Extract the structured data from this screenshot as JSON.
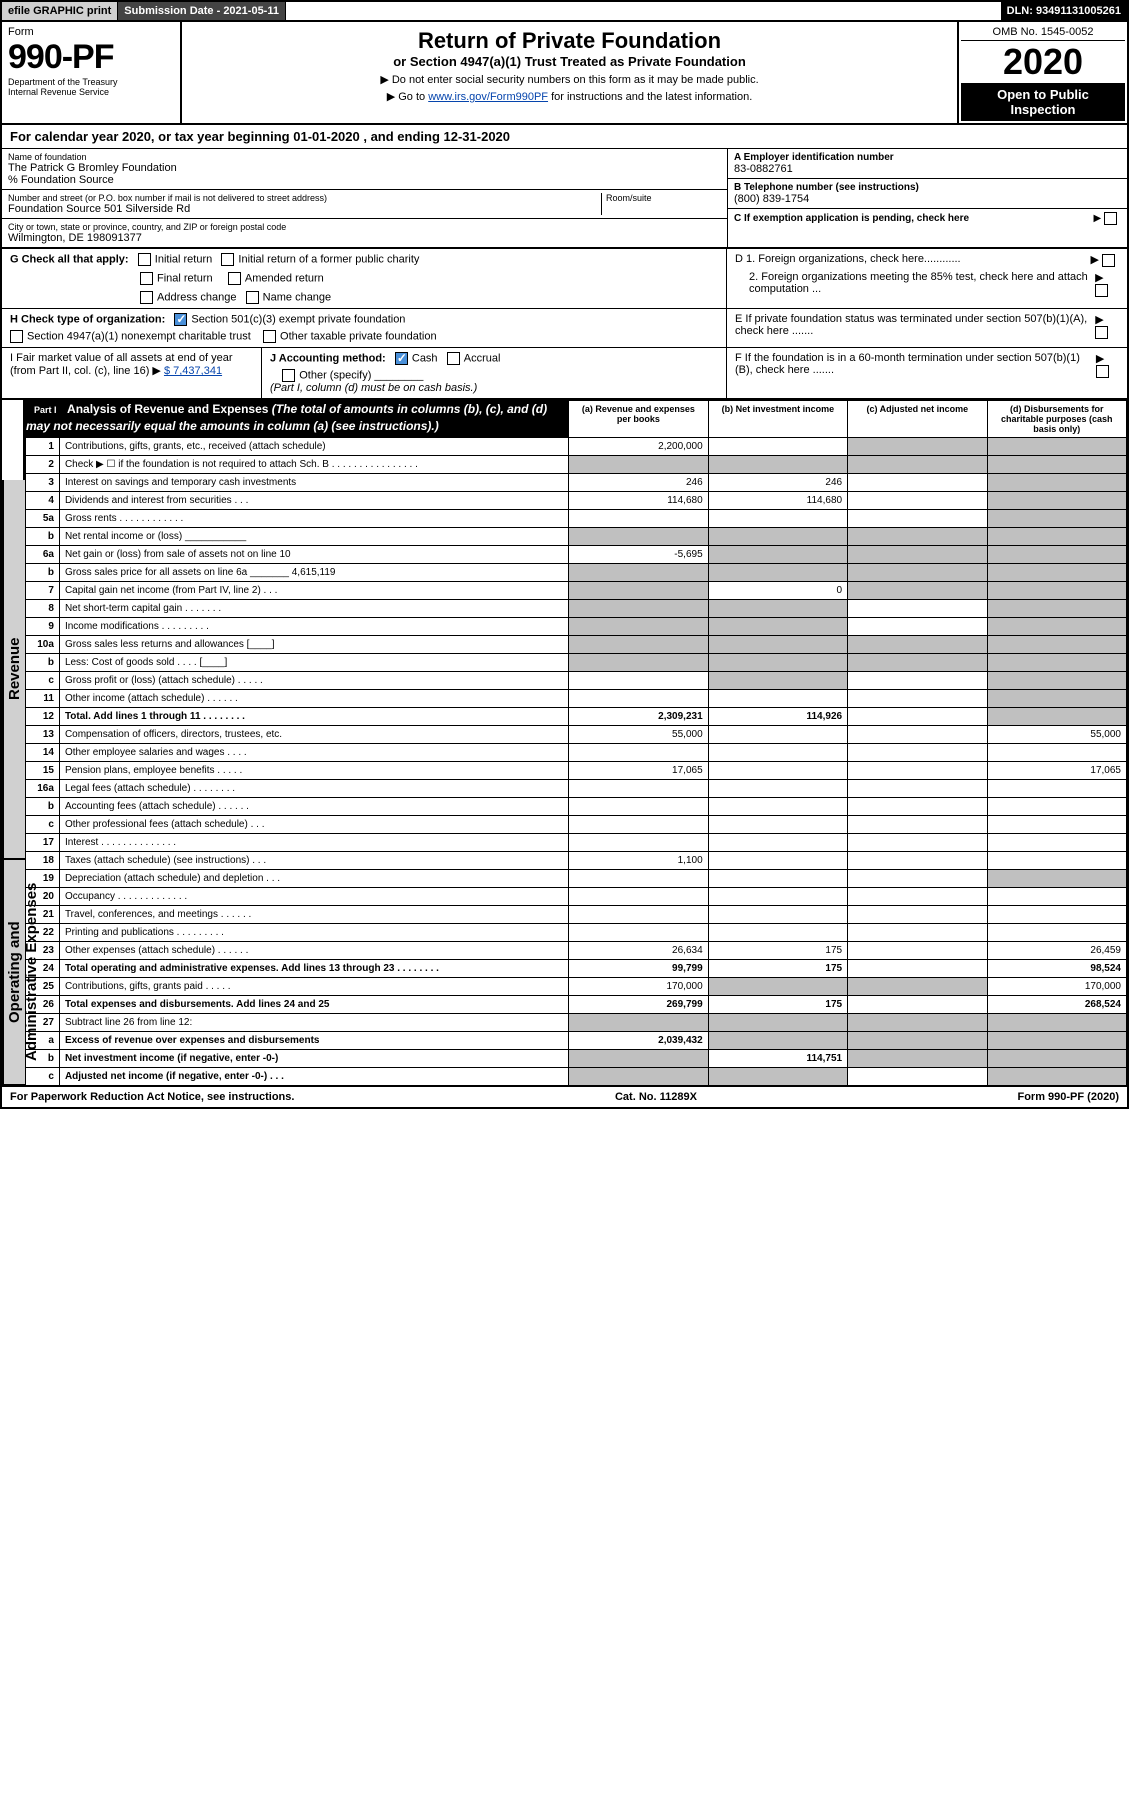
{
  "topbar": {
    "efile": "efile GRAPHIC print",
    "subdate_label": "Submission Date - 2021-05-11",
    "dln": "DLN: 93491131005261"
  },
  "header": {
    "form_word": "Form",
    "form_number": "990-PF",
    "dept": "Department of the Treasury",
    "irs": "Internal Revenue Service",
    "title": "Return of Private Foundation",
    "subtitle": "or Section 4947(a)(1) Trust Treated as Private Foundation",
    "note1": "▶ Do not enter social security numbers on this form as it may be made public.",
    "note2_pre": "▶ Go to ",
    "note2_link": "www.irs.gov/Form990PF",
    "note2_post": " for instructions and the latest information.",
    "omb": "OMB No. 1545-0052",
    "year": "2020",
    "open": "Open to Public Inspection"
  },
  "calendar": {
    "text_pre": "For calendar year 2020, or tax year beginning ",
    "begin": "01-01-2020",
    "mid": " , and ending ",
    "end": "12-31-2020"
  },
  "foundation": {
    "name_label": "Name of foundation",
    "name": "The Patrick G Bromley Foundation",
    "care_of": "% Foundation Source",
    "addr_label": "Number and street (or P.O. box number if mail is not delivered to street address)",
    "addr": "Foundation Source 501 Silverside Rd",
    "room_label": "Room/suite",
    "city_label": "City or town, state or province, country, and ZIP or foreign postal code",
    "city": "Wilmington, DE  198091377",
    "ein_label": "A Employer identification number",
    "ein": "83-0882761",
    "phone_label": "B Telephone number (see instructions)",
    "phone": "(800) 839-1754",
    "exemption_label": "C If exemption application is pending, check here"
  },
  "checks": {
    "G_label": "G Check all that apply:",
    "initial": "Initial return",
    "initial_former": "Initial return of a former public charity",
    "final": "Final return",
    "amended": "Amended return",
    "addr_change": "Address change",
    "name_change": "Name change",
    "H_label": "H Check type of organization:",
    "sec501": "Section 501(c)(3) exempt private foundation",
    "sec4947": "Section 4947(a)(1) nonexempt charitable trust",
    "other_taxable": "Other taxable private foundation",
    "D1": "D 1. Foreign organizations, check here............",
    "D2": "2. Foreign organizations meeting the 85% test, check here and attach computation ...",
    "E": "E  If private foundation status was terminated under section 507(b)(1)(A), check here .......",
    "F": "F  If the foundation is in a 60-month termination under section 507(b)(1)(B), check here .......",
    "I_label": "I Fair market value of all assets at end of year (from Part II, col. (c), line 16) ▶",
    "I_value": "$  7,437,341",
    "J_label": "J Accounting method:",
    "J_cash": "Cash",
    "J_accrual": "Accrual",
    "J_other": "Other (specify)",
    "J_note": "(Part I, column (d) must be on cash basis.)"
  },
  "part1": {
    "label": "Part I",
    "title": "Analysis of Revenue and Expenses",
    "title_note": " (The total of amounts in columns (b), (c), and (d) may not necessarily equal the amounts in column (a) (see instructions).)",
    "col_a": "(a) Revenue and expenses per books",
    "col_b": "(b) Net investment income",
    "col_c": "(c) Adjusted net income",
    "col_d": "(d) Disbursements for charitable purposes (cash basis only)"
  },
  "side_labels": {
    "revenue": "Revenue",
    "expenses": "Operating and Administrative Expenses"
  },
  "rows": [
    {
      "n": "1",
      "d": "Contributions, gifts, grants, etc., received (attach schedule)",
      "a": "2,200,000",
      "b": "",
      "c": "shade",
      "dd": "shade"
    },
    {
      "n": "2",
      "d": "Check ▶ ☐ if the foundation is not required to attach Sch. B   .  .  .  .  .  .  .  .  .  .  .  .  .  .  .  .",
      "a": "shade",
      "b": "shade",
      "c": "shade",
      "dd": "shade"
    },
    {
      "n": "3",
      "d": "Interest on savings and temporary cash investments",
      "a": "246",
      "b": "246",
      "c": "",
      "dd": "shade"
    },
    {
      "n": "4",
      "d": "Dividends and interest from securities   .  .  .",
      "a": "114,680",
      "b": "114,680",
      "c": "",
      "dd": "shade"
    },
    {
      "n": "5a",
      "d": "Gross rents   .  .  .  .  .  .  .  .  .  .  .  .",
      "a": "",
      "b": "",
      "c": "",
      "dd": "shade"
    },
    {
      "n": "b",
      "d": "Net rental income or (loss)  ___________",
      "a": "shade",
      "b": "shade",
      "c": "shade",
      "dd": "shade"
    },
    {
      "n": "6a",
      "d": "Net gain or (loss) from sale of assets not on line 10",
      "a": "-5,695",
      "b": "shade",
      "c": "shade",
      "dd": "shade"
    },
    {
      "n": "b",
      "d": "Gross sales price for all assets on line 6a _______ 4,615,119",
      "a": "shade",
      "b": "shade",
      "c": "shade",
      "dd": "shade"
    },
    {
      "n": "7",
      "d": "Capital gain net income (from Part IV, line 2)   .  .  .",
      "a": "shade",
      "b": "0",
      "c": "shade",
      "dd": "shade"
    },
    {
      "n": "8",
      "d": "Net short-term capital gain   .  .  .  .  .  .  .",
      "a": "shade",
      "b": "shade",
      "c": "",
      "dd": "shade"
    },
    {
      "n": "9",
      "d": "Income modifications  .  .  .  .  .  .  .  .  .",
      "a": "shade",
      "b": "shade",
      "c": "",
      "dd": "shade"
    },
    {
      "n": "10a",
      "d": "Gross sales less returns and allowances  [____]",
      "a": "shade",
      "b": "shade",
      "c": "shade",
      "dd": "shade"
    },
    {
      "n": "b",
      "d": "Less: Cost of goods sold   .  .  .  .  [____]",
      "a": "shade",
      "b": "shade",
      "c": "shade",
      "dd": "shade"
    },
    {
      "n": "c",
      "d": "Gross profit or (loss) (attach schedule)   .  .  .  .  .",
      "a": "",
      "b": "shade",
      "c": "",
      "dd": "shade"
    },
    {
      "n": "11",
      "d": "Other income (attach schedule)   .  .  .  .  .  .",
      "a": "",
      "b": "",
      "c": "",
      "dd": "shade"
    },
    {
      "n": "12",
      "d": "Total. Add lines 1 through 11   .  .  .  .  .  .  .  .",
      "a": "2,309,231",
      "b": "114,926",
      "c": "",
      "dd": "shade",
      "bold": true
    },
    {
      "n": "13",
      "d": "Compensation of officers, directors, trustees, etc.",
      "a": "55,000",
      "b": "",
      "c": "",
      "dd": "55,000"
    },
    {
      "n": "14",
      "d": "Other employee salaries and wages   .  .  .  .",
      "a": "",
      "b": "",
      "c": "",
      "dd": ""
    },
    {
      "n": "15",
      "d": "Pension plans, employee benefits   .  .  .  .  .",
      "a": "17,065",
      "b": "",
      "c": "",
      "dd": "17,065"
    },
    {
      "n": "16a",
      "d": "Legal fees (attach schedule)  .  .  .  .  .  .  .  .",
      "a": "",
      "b": "",
      "c": "",
      "dd": ""
    },
    {
      "n": "b",
      "d": "Accounting fees (attach schedule)  .  .  .  .  .  .",
      "a": "",
      "b": "",
      "c": "",
      "dd": ""
    },
    {
      "n": "c",
      "d": "Other professional fees (attach schedule)   .  .  .",
      "a": "",
      "b": "",
      "c": "",
      "dd": ""
    },
    {
      "n": "17",
      "d": "Interest  .  .  .  .  .  .  .  .  .  .  .  .  .  .",
      "a": "",
      "b": "",
      "c": "",
      "dd": ""
    },
    {
      "n": "18",
      "d": "Taxes (attach schedule) (see instructions)   .  .  .",
      "a": "1,100",
      "b": "",
      "c": "",
      "dd": ""
    },
    {
      "n": "19",
      "d": "Depreciation (attach schedule) and depletion   .  .  .",
      "a": "",
      "b": "",
      "c": "",
      "dd": "shade"
    },
    {
      "n": "20",
      "d": "Occupancy  .  .  .  .  .  .  .  .  .  .  .  .  .",
      "a": "",
      "b": "",
      "c": "",
      "dd": ""
    },
    {
      "n": "21",
      "d": "Travel, conferences, and meetings  .  .  .  .  .  .",
      "a": "",
      "b": "",
      "c": "",
      "dd": ""
    },
    {
      "n": "22",
      "d": "Printing and publications  .  .  .  .  .  .  .  .  .",
      "a": "",
      "b": "",
      "c": "",
      "dd": ""
    },
    {
      "n": "23",
      "d": "Other expenses (attach schedule)  .  .  .  .  .  .",
      "a": "26,634",
      "b": "175",
      "c": "",
      "dd": "26,459"
    },
    {
      "n": "24",
      "d": "Total operating and administrative expenses. Add lines 13 through 23   .  .  .  .  .  .  .  .",
      "a": "99,799",
      "b": "175",
      "c": "",
      "dd": "98,524",
      "bold": true
    },
    {
      "n": "25",
      "d": "Contributions, gifts, grants paid   .  .  .  .  .",
      "a": "170,000",
      "b": "shade",
      "c": "shade",
      "dd": "170,000"
    },
    {
      "n": "26",
      "d": "Total expenses and disbursements. Add lines 24 and 25",
      "a": "269,799",
      "b": "175",
      "c": "",
      "dd": "268,524",
      "bold": true
    },
    {
      "n": "27",
      "d": "Subtract line 26 from line 12:",
      "a": "shade",
      "b": "shade",
      "c": "shade",
      "dd": "shade"
    },
    {
      "n": "a",
      "d": "Excess of revenue over expenses and disbursements",
      "a": "2,039,432",
      "b": "shade",
      "c": "shade",
      "dd": "shade",
      "bold": true
    },
    {
      "n": "b",
      "d": "Net investment income (if negative, enter -0-)",
      "a": "shade",
      "b": "114,751",
      "c": "shade",
      "dd": "shade",
      "bold": true
    },
    {
      "n": "c",
      "d": "Adjusted net income (if negative, enter -0-)   .  .  .",
      "a": "shade",
      "b": "shade",
      "c": "",
      "dd": "shade",
      "bold": true
    }
  ],
  "footer": {
    "left": "For Paperwork Reduction Act Notice, see instructions.",
    "center": "Cat. No. 11289X",
    "right": "Form 990-PF (2020)"
  }
}
